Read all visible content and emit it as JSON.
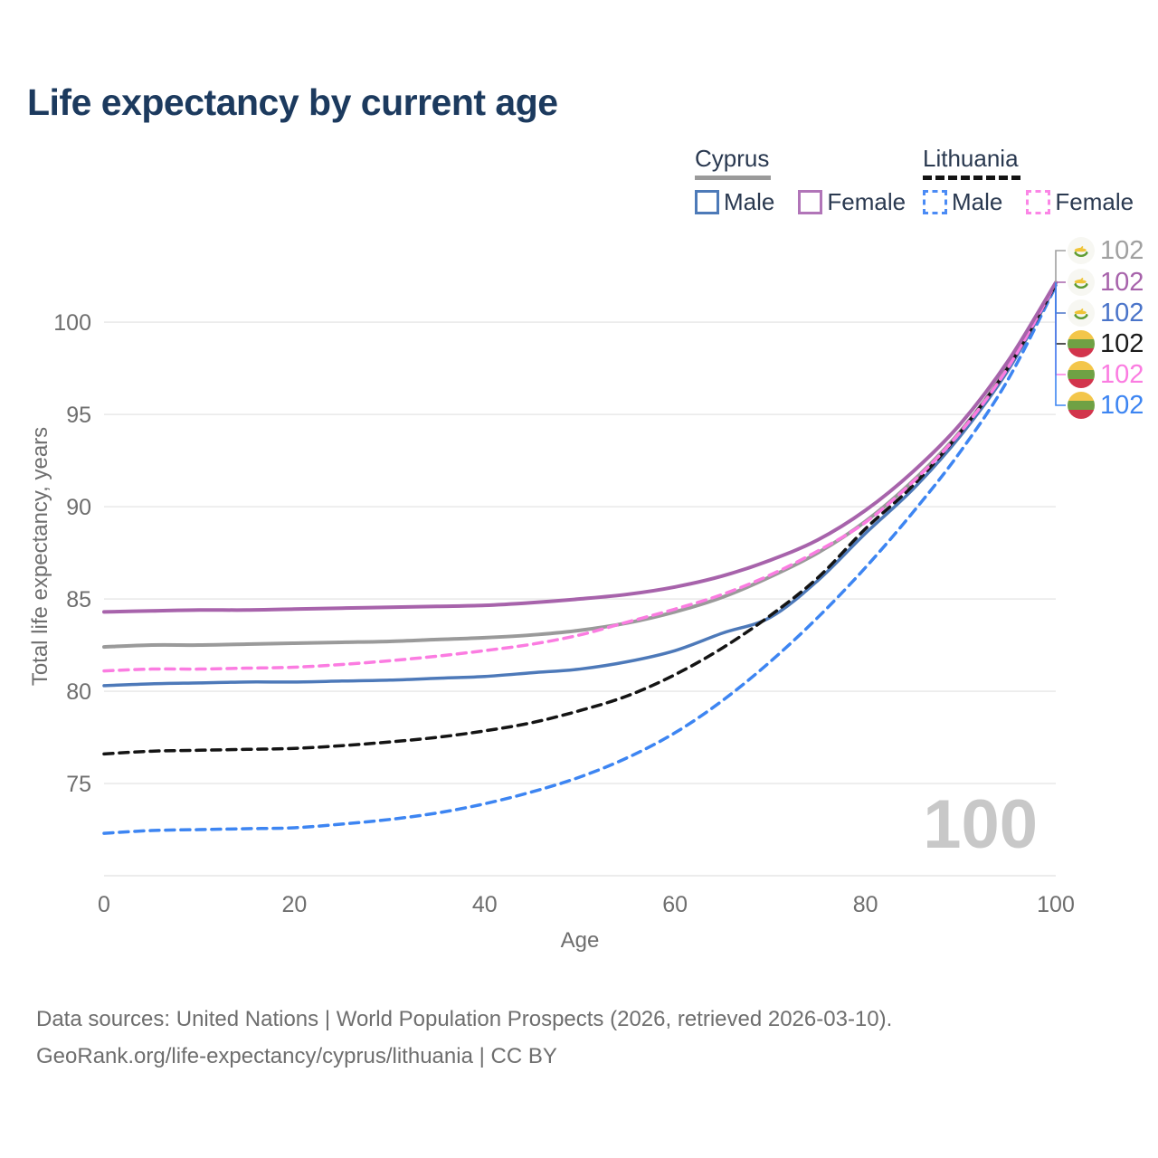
{
  "header": {
    "title": "Life expectancy by current age"
  },
  "legend": {
    "groups": [
      {
        "label": "Cyprus",
        "line_style": "solid",
        "line_color": "#9a9a9a",
        "items": [
          {
            "label": "Male",
            "box_color": "#4d7ab8",
            "box_style": "solid"
          },
          {
            "label": "Female",
            "box_color": "#b175b8",
            "box_style": "solid"
          }
        ]
      },
      {
        "label": "Lithuania",
        "line_style": "dashed",
        "line_color": "#141414",
        "items": [
          {
            "label": "Male",
            "box_color": "#4b8bf5",
            "box_style": "dashed"
          },
          {
            "label": "Female",
            "box_color": "#fb86e6",
            "box_style": "dashed"
          }
        ]
      }
    ]
  },
  "chart_data": {
    "type": "line",
    "title": "Life expectancy by current age",
    "xlabel": "Age",
    "ylabel": "Total life expectancy, years",
    "xlim": [
      0,
      100
    ],
    "ylim": [
      70,
      103.24
    ],
    "xticks": [
      0,
      20,
      40,
      60,
      80,
      100
    ],
    "yticks": [
      75,
      80,
      85,
      90,
      95,
      100
    ],
    "grid": "horizontal",
    "legend_position": "top-right",
    "x": [
      0,
      5,
      10,
      15,
      20,
      25,
      30,
      35,
      40,
      45,
      50,
      55,
      60,
      65,
      70,
      75,
      80,
      85,
      90,
      95,
      100
    ],
    "series": [
      {
        "name": "Cyprus — Total",
        "country": "Cyprus",
        "sex": "Total",
        "color": "#9a9a9a",
        "dash": "solid",
        "width": 4,
        "values": [
          82.4,
          82.5,
          82.5,
          82.55,
          82.6,
          82.65,
          82.7,
          82.8,
          82.9,
          83.05,
          83.3,
          83.7,
          84.3,
          85.1,
          86.2,
          87.5,
          89.2,
          91.4,
          94.1,
          97.6,
          102.1
        ]
      },
      {
        "name": "Cyprus — Female",
        "country": "Cyprus",
        "sex": "Female",
        "color": "#a763ab",
        "dash": "solid",
        "width": 4,
        "values": [
          84.3,
          84.35,
          84.4,
          84.4,
          84.45,
          84.5,
          84.55,
          84.6,
          84.65,
          84.8,
          85.0,
          85.25,
          85.65,
          86.25,
          87.1,
          88.2,
          89.8,
          91.9,
          94.5,
          97.9,
          102.15
        ]
      },
      {
        "name": "Cyprus — Male",
        "country": "Cyprus",
        "sex": "Male",
        "color": "#4d79b9",
        "dash": "solid",
        "width": 3.5,
        "values": [
          80.3,
          80.4,
          80.45,
          80.5,
          80.5,
          80.55,
          80.6,
          80.7,
          80.8,
          81.0,
          81.2,
          81.6,
          82.2,
          83.15,
          84.0,
          86.0,
          88.55,
          90.95,
          93.85,
          97.4,
          102.0
        ]
      },
      {
        "name": "Lithuania — Total",
        "country": "Lithuania",
        "sex": "Total",
        "color": "#141414",
        "dash": "dashed",
        "width": 3.5,
        "values": [
          76.6,
          76.75,
          76.8,
          76.85,
          76.9,
          77.05,
          77.25,
          77.5,
          77.85,
          78.3,
          78.95,
          79.75,
          80.9,
          82.35,
          84.1,
          86.15,
          88.8,
          91.15,
          94.05,
          97.55,
          102.05
        ]
      },
      {
        "name": "Lithuania — Female",
        "country": "Lithuania",
        "sex": "Female",
        "color": "#fb7ce1",
        "dash": "dashed",
        "width": 3.5,
        "values": [
          81.1,
          81.2,
          81.2,
          81.25,
          81.3,
          81.45,
          81.65,
          81.9,
          82.2,
          82.55,
          83.05,
          83.75,
          84.45,
          85.25,
          86.3,
          87.6,
          89.15,
          91.35,
          94.05,
          97.55,
          102.1
        ]
      },
      {
        "name": "Lithuania — Male",
        "country": "Lithuania",
        "sex": "Male",
        "color": "#3d85f2",
        "dash": "dashed",
        "width": 3.5,
        "values": [
          72.3,
          72.45,
          72.5,
          72.55,
          72.6,
          72.8,
          73.05,
          73.4,
          73.9,
          74.55,
          75.35,
          76.4,
          77.75,
          79.5,
          81.6,
          84.0,
          86.7,
          89.7,
          93.0,
          96.9,
          101.95
        ]
      }
    ],
    "end_labels": [
      {
        "flag": "cyprus",
        "value": "102",
        "color": "#a0a0a0",
        "series": "Cyprus — Total"
      },
      {
        "flag": "cyprus",
        "value": "102",
        "color": "#a763ab",
        "series": "Cyprus — Female"
      },
      {
        "flag": "cyprus",
        "value": "102",
        "color": "#4a74c9",
        "series": "Cyprus — Male"
      },
      {
        "flag": "lithuania",
        "value": "102",
        "color": "#1a1a1a",
        "series": "Lithuania — Total"
      },
      {
        "flag": "lithuania",
        "value": "102",
        "color": "#fb7ce1",
        "series": "Lithuania — Female"
      },
      {
        "flag": "lithuania",
        "value": "102",
        "color": "#3d85f2",
        "series": "Lithuania — Male"
      }
    ]
  },
  "watermark": {
    "value": "100"
  },
  "footer": {
    "line1": "Data sources: United Nations | World Population Prospects (2026, retrieved 2026-03-10).",
    "line2": "GeoRank.org/life-expectancy/cyprus/lithuania | CC BY"
  }
}
